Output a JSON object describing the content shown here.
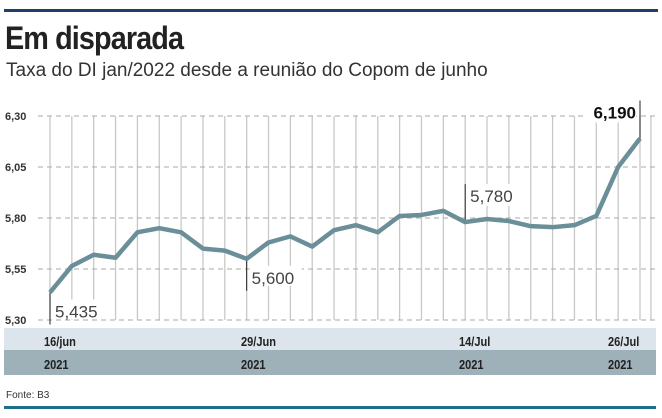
{
  "header": {
    "title": "Em disparada",
    "subtitle": "Taxa do DI jan/2022 desde a reunião do Copom de junho"
  },
  "footer": {
    "source": "Fonte: B3"
  },
  "colors": {
    "line": "#6a8f99",
    "topline": "#1f3f66",
    "bottomline": "#1f6f8b"
  },
  "chart_data": {
    "type": "line",
    "title": "Em disparada",
    "subtitle": "Taxa do DI jan/2022 desde a reunião do Copom de junho",
    "ylim": [
      5.3,
      6.3
    ],
    "yticks": [
      "6,30",
      "6,05",
      "5,80",
      "5,55",
      "5,30"
    ],
    "ytick_values": [
      6.3,
      6.05,
      5.8,
      5.55,
      5.3
    ],
    "grid": true,
    "values": [
      5.435,
      5.565,
      5.62,
      5.605,
      5.73,
      5.75,
      5.73,
      5.65,
      5.64,
      5.6,
      5.68,
      5.71,
      5.66,
      5.74,
      5.765,
      5.73,
      5.81,
      5.815,
      5.835,
      5.78,
      5.795,
      5.785,
      5.76,
      5.755,
      5.765,
      5.81,
      6.05,
      6.19
    ],
    "xticks": [
      {
        "index": 0,
        "date": "16/jun",
        "year": "2021"
      },
      {
        "index": 9,
        "date": "29/Jun",
        "year": "2021"
      },
      {
        "index": 19,
        "date": "14/Jul",
        "year": "2021"
      },
      {
        "index": 27,
        "date": "26/Jul",
        "year": "2021"
      }
    ],
    "annotations": [
      {
        "index": 0,
        "text": "5,435",
        "pos": "below"
      },
      {
        "index": 9,
        "text": "5,600",
        "pos": "below"
      },
      {
        "index": 19,
        "text": "5,780",
        "pos": "above"
      },
      {
        "index": 27,
        "text": "6,190",
        "pos": "above",
        "bold": true
      }
    ]
  }
}
